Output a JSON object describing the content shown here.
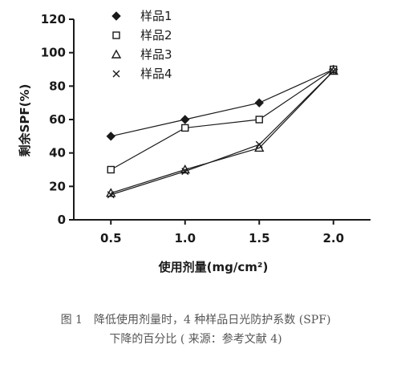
{
  "chart_data": {
    "type": "line",
    "xlabel": "使用剂量(mg/cm²)",
    "ylabel": "剩余SPF(%)",
    "x": [
      0.5,
      1.0,
      1.5,
      2.0
    ],
    "x_ticks": [
      "0.5",
      "1.0",
      "1.5",
      "2.0"
    ],
    "xlim": [
      0.25,
      2.25
    ],
    "ylim": [
      0,
      120
    ],
    "y_ticks": [
      "0",
      "20",
      "40",
      "60",
      "80",
      "100",
      "120"
    ],
    "grid": false,
    "legend_position": "top-left",
    "series": [
      {
        "name": "样品1",
        "marker": "filled-diamond",
        "values": [
          50,
          60,
          70,
          90
        ]
      },
      {
        "name": "样品2",
        "marker": "open-square",
        "values": [
          30,
          55,
          60,
          90
        ]
      },
      {
        "name": "样品3",
        "marker": "open-triangle",
        "values": [
          16,
          30,
          43,
          89
        ]
      },
      {
        "name": "样品4",
        "marker": "cross",
        "values": [
          15,
          29,
          45,
          89
        ]
      }
    ]
  },
  "caption": {
    "line1": "图 1　降低使用剂量时，4 种样品日光防护系数 (SPF)",
    "line2": "下降的百分比 ( 来源：参考文献 4)"
  }
}
